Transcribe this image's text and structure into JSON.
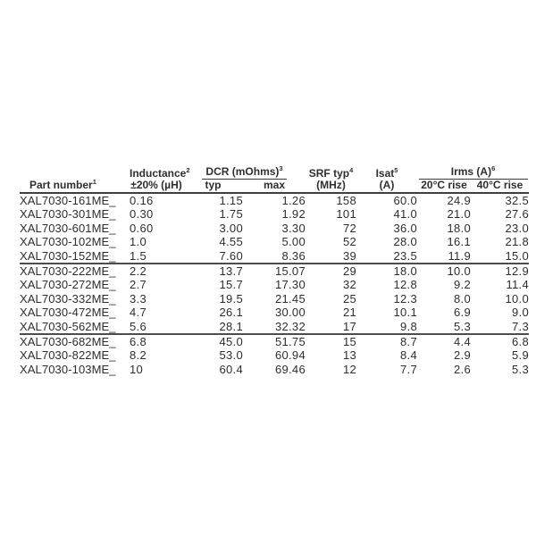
{
  "colors": {
    "background": "#ffffff",
    "text": "#2e2e2e",
    "rule-heavy": "#3f3f3f",
    "rule-group": "#4d4d4d",
    "rule-underline": "#3a3a3a"
  },
  "table": {
    "header": {
      "part_number": "Part number",
      "part_number_sup": "1",
      "inductance_line1": "Inductance",
      "inductance_sup": "2",
      "inductance_line2": "±20% (µH)",
      "dcr_group": "DCR (mOhms)",
      "dcr_sup": "3",
      "dcr_typ": "typ",
      "dcr_max": "max",
      "srf_line1": "SRF typ",
      "srf_sup": "4",
      "srf_line2": "(MHz)",
      "isat_line1": "Isat",
      "isat_sup": "5",
      "isat_line2": "(A)",
      "irms_group": "Irms (A)",
      "irms_sup": "6",
      "irms_20": "20°C rise",
      "irms_40": "40°C rise"
    },
    "groups": [
      {
        "rows": [
          [
            "XAL7030-161ME_",
            "0.16",
            "1.15",
            "1.26",
            "158",
            "60.0",
            "24.9",
            "32.5"
          ],
          [
            "XAL7030-301ME_",
            "0.30",
            "1.75",
            "1.92",
            "101",
            "41.0",
            "21.0",
            "27.6"
          ],
          [
            "XAL7030-601ME_",
            "0.60",
            "3.00",
            "3.30",
            "72",
            "36.0",
            "18.0",
            "23.0"
          ],
          [
            "XAL7030-102ME_",
            "1.0",
            "4.55",
            "5.00",
            "52",
            "28.0",
            "16.1",
            "21.8"
          ],
          [
            "XAL7030-152ME_",
            "1.5",
            "7.60",
            "8.36",
            "39",
            "23.5",
            "11.9",
            "15.0"
          ]
        ]
      },
      {
        "rows": [
          [
            "XAL7030-222ME_",
            "2.2",
            "13.7",
            "15.07",
            "29",
            "18.0",
            "10.0",
            "12.9"
          ],
          [
            "XAL7030-272ME_",
            "2.7",
            "15.7",
            "17.30",
            "32",
            "12.8",
            "9.2",
            "11.4"
          ],
          [
            "XAL7030-332ME_",
            "3.3",
            "19.5",
            "21.45",
            "25",
            "12.3",
            "8.0",
            "10.0"
          ],
          [
            "XAL7030-472ME_",
            "4.7",
            "26.1",
            "30.00",
            "21",
            "10.1",
            "6.9",
            "9.0"
          ],
          [
            "XAL7030-562ME_",
            "5.6",
            "28.1",
            "32.32",
            "17",
            "9.8",
            "5.3",
            "7.3"
          ]
        ]
      },
      {
        "rows": [
          [
            "XAL7030-682ME_",
            "6.8",
            "45.0",
            "51.75",
            "15",
            "8.7",
            "4.4",
            "6.8"
          ],
          [
            "XAL7030-822ME_",
            "8.2",
            "53.0",
            "60.94",
            "13",
            "8.4",
            "2.9",
            "5.9"
          ],
          [
            "XAL7030-103ME_",
            "10",
            "60.4",
            "69.46",
            "12",
            "7.7",
            "2.6",
            "5.3"
          ]
        ]
      }
    ]
  }
}
